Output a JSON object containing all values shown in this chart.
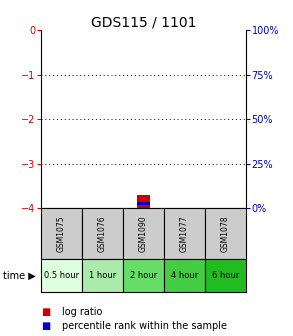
{
  "title": "GDS115 / 1101",
  "samples": [
    "GSM1075",
    "GSM1076",
    "GSM1090",
    "GSM1077",
    "GSM1078"
  ],
  "time_labels": [
    "0.5 hour",
    "1 hour",
    "2 hour",
    "4 hour",
    "6 hour"
  ],
  "ylim_left": [
    -4,
    0
  ],
  "ylim_right": [
    0,
    100
  ],
  "yticks_left": [
    0,
    -1,
    -2,
    -3,
    -4
  ],
  "yticks_right": [
    100,
    75,
    50,
    25,
    0
  ],
  "log_ratio_sample_idx": 2,
  "log_ratio_value": -3.7,
  "percentile_value": 2,
  "bar_color_red": "#cc0000",
  "bar_color_blue": "#0000cc",
  "sample_bg_color": "#cccccc",
  "time_colors": [
    "#ddffdd",
    "#aaeaaa",
    "#66dd66",
    "#44cc44",
    "#22bb22"
  ],
  "dotted_line_color": "#000000",
  "left_tick_color": "#cc0000",
  "right_tick_color": "#0000cc",
  "title_fontsize": 10,
  "tick_fontsize": 7,
  "legend_fontsize": 7,
  "sample_fontsize": 5.5,
  "time_fontsize": 6
}
